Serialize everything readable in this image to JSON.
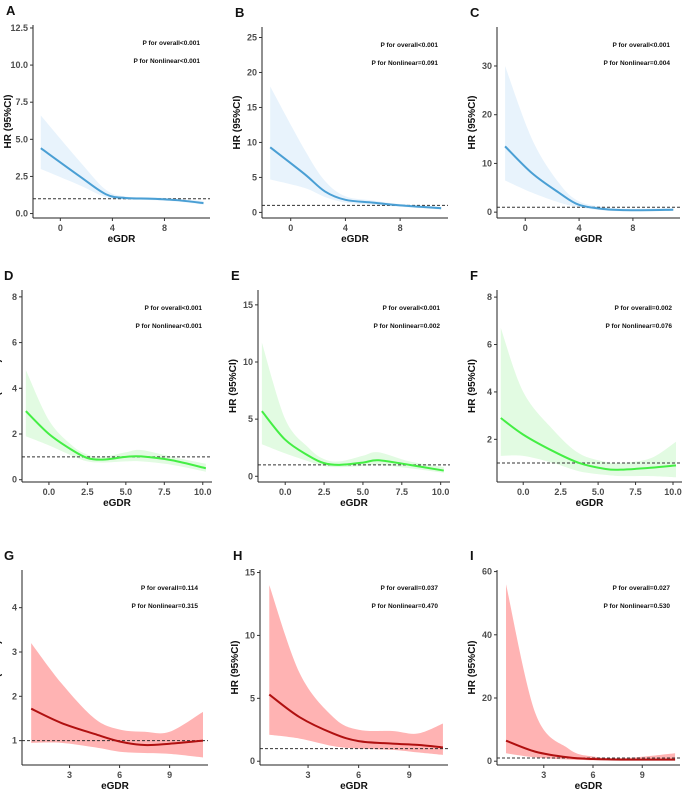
{
  "chart_data": [
    {
      "type": "line",
      "panel": "A",
      "xlabel": "eGDR",
      "ylabel": "HR (95%CI)",
      "p_overall": "P for overall<0.001",
      "p_nonlinear": "P for Nonlinear<0.001",
      "xlim": [
        -2.1,
        11.5
      ],
      "ylim": [
        -0.3,
        12.7
      ],
      "xticks": [
        "0",
        "4",
        "8"
      ],
      "xtick_values": [
        0,
        4,
        8
      ],
      "yticks": [
        "0.0",
        "2.5",
        "5.0",
        "7.5",
        "10.0",
        "12.5"
      ],
      "ytick_values": [
        0,
        2.5,
        5,
        7.5,
        10,
        12.5
      ],
      "line_color": "#4a9fd4",
      "band_color": "#e8f3fc",
      "reference": 1,
      "x": [
        -1.5,
        1.5,
        3.5,
        5,
        7,
        9,
        11
      ],
      "y": [
        4.4,
        2.5,
        1.3,
        1.05,
        1.0,
        0.9,
        0.7
      ],
      "upper": [
        6.6,
        3.5,
        1.6,
        1.15,
        1.1,
        1.0,
        0.85
      ],
      "lower": [
        3.0,
        1.9,
        1.1,
        0.95,
        0.9,
        0.8,
        0.6
      ]
    },
    {
      "type": "line",
      "panel": "B",
      "xlabel": "eGDR",
      "ylabel": "HR (95%CI)",
      "p_overall": "P for overall<0.001",
      "p_nonlinear": "P for Nonlinear=0.091",
      "xlim": [
        -2.1,
        11.5
      ],
      "ylim": [
        -0.8,
        26.5
      ],
      "xticks": [
        "0",
        "4",
        "8"
      ],
      "xtick_values": [
        0,
        4,
        8
      ],
      "yticks": [
        "0",
        "5",
        "10",
        "15",
        "20",
        "25"
      ],
      "ytick_values": [
        0,
        5,
        10,
        15,
        20,
        25
      ],
      "line_color": "#4a9fd4",
      "band_color": "#e8f3fc",
      "reference": 1,
      "x": [
        -1.5,
        1,
        2.5,
        4,
        6,
        8,
        11
      ],
      "y": [
        9.3,
        5.5,
        3.0,
        1.8,
        1.4,
        1.0,
        0.6
      ],
      "upper": [
        18,
        9,
        4.5,
        2.3,
        1.7,
        1.2,
        0.8
      ],
      "lower": [
        4.7,
        3.5,
        2.2,
        1.4,
        1.1,
        0.8,
        0.4
      ]
    },
    {
      "type": "line",
      "panel": "C",
      "xlabel": "eGDR",
      "ylabel": "HR (95%CI)",
      "p_overall": "P for overall<0.001",
      "p_nonlinear": "P for Nonlinear=0.004",
      "xlim": [
        -2.1,
        11.5
      ],
      "ylim": [
        -1.2,
        38
      ],
      "xticks": [
        "0",
        "4",
        "8"
      ],
      "xtick_values": [
        0,
        4,
        8
      ],
      "yticks": [
        "0",
        "10",
        "20",
        "30"
      ],
      "ytick_values": [
        0,
        10,
        20,
        30
      ],
      "line_color": "#4a9fd4",
      "band_color": "#e8f3fc",
      "reference": 1,
      "x": [
        -1.5,
        0.5,
        2.5,
        4,
        6,
        8,
        11
      ],
      "y": [
        13.5,
        8,
        4,
        1.5,
        0.6,
        0.4,
        0.5
      ],
      "upper": [
        30,
        15,
        6,
        2.2,
        1,
        0.7,
        0.9
      ],
      "lower": [
        6.5,
        4,
        2,
        1,
        0.3,
        0.2,
        0.3
      ]
    },
    {
      "type": "line",
      "panel": "D",
      "xlabel": "eGDR",
      "ylabel": "HR (95%CI)",
      "p_overall": "P for overall<0.001",
      "p_nonlinear": "P for Nonlinear<0.001",
      "xlim": [
        -1.75,
        10.6
      ],
      "ylim": [
        -0.1,
        8.3
      ],
      "xticks": [
        "0.0",
        "2.5",
        "5.0",
        "7.5",
        "10.0"
      ],
      "xtick_values": [
        0,
        2.5,
        5,
        7.5,
        10
      ],
      "yticks": [
        "0",
        "2",
        "4",
        "6",
        "8"
      ],
      "ytick_values": [
        0,
        2,
        4,
        6,
        8
      ],
      "line_color": "#44ee44",
      "band_color": "#e2fbe2",
      "reference": 1,
      "x": [
        -1.5,
        0,
        1.5,
        2.5,
        3.5,
        5,
        6,
        8,
        10.2
      ],
      "y": [
        3.0,
        2.0,
        1.3,
        0.95,
        0.88,
        1.0,
        1.02,
        0.85,
        0.5
      ],
      "upper": [
        4.8,
        2.6,
        1.5,
        1.1,
        1.0,
        1.2,
        1.3,
        1.0,
        0.7
      ],
      "lower": [
        1.9,
        1.5,
        1.05,
        0.8,
        0.75,
        0.8,
        0.8,
        0.65,
        0.35
      ]
    },
    {
      "type": "line",
      "panel": "E",
      "xlabel": "eGDR",
      "ylabel": "HR (95%CI)",
      "p_overall": "P for overall<0.001",
      "p_nonlinear": "P for Nonlinear=0.002",
      "xlim": [
        -1.75,
        10.6
      ],
      "ylim": [
        -0.5,
        16.3
      ],
      "xticks": [
        "0.0",
        "2.5",
        "5.0",
        "7.5",
        "10.0"
      ],
      "xtick_values": [
        0,
        2.5,
        5,
        7.5,
        10
      ],
      "yticks": [
        "0",
        "5",
        "10",
        "15"
      ],
      "ytick_values": [
        0,
        5,
        10,
        15
      ],
      "line_color": "#44ee44",
      "band_color": "#e2fbe2",
      "reference": 1,
      "x": [
        -1.5,
        0,
        1.5,
        2.5,
        3.5,
        5,
        6,
        8,
        10.2
      ],
      "y": [
        5.7,
        3.2,
        1.8,
        1.15,
        1.0,
        1.2,
        1.4,
        1.0,
        0.5
      ],
      "upper": [
        11.7,
        5,
        2.5,
        1.5,
        1.3,
        1.8,
        2.1,
        1.3,
        0.8
      ],
      "lower": [
        2.8,
        2,
        1.3,
        0.9,
        0.8,
        0.9,
        1.0,
        0.7,
        0.3
      ]
    },
    {
      "type": "line",
      "panel": "F",
      "xlabel": "eGDR",
      "ylabel": "HR (95%CI)",
      "p_overall": "P for overall=0.002",
      "p_nonlinear": "P for Nonlinear=0.076",
      "xlim": [
        -1.75,
        10.6
      ],
      "ylim": [
        0.2,
        8.3
      ],
      "xticks": [
        "0.0",
        "2.5",
        "5.0",
        "7.5",
        "10.0"
      ],
      "xtick_values": [
        0,
        2.5,
        5,
        7.5,
        10
      ],
      "yticks": [
        "2",
        "4",
        "6",
        "8"
      ],
      "ytick_values": [
        2,
        4,
        6,
        8
      ],
      "line_color": "#44ee44",
      "band_color": "#e2fbe2",
      "reference": 1,
      "x": [
        -1.5,
        0,
        2,
        3.75,
        5.5,
        6.5,
        8.5,
        10.2
      ],
      "y": [
        2.9,
        2.2,
        1.5,
        1.0,
        0.75,
        0.72,
        0.8,
        0.9
      ],
      "upper": [
        6.7,
        4.0,
        2.4,
        1.4,
        1.05,
        1.0,
        1.2,
        1.9
      ],
      "lower": [
        1.3,
        1.3,
        1.0,
        0.65,
        0.5,
        0.45,
        0.45,
        0.4
      ]
    },
    {
      "type": "line",
      "panel": "G",
      "xlabel": "eGDR",
      "ylabel": "HR (95%CI)",
      "p_overall": "P for overall=0.114",
      "p_nonlinear": "P for Nonlinear=0.315",
      "xlim": [
        0.15,
        11.3
      ],
      "ylim": [
        0.45,
        4.85
      ],
      "xticks": [
        "3",
        "6",
        "9"
      ],
      "xtick_values": [
        3,
        6,
        9
      ],
      "yticks": [
        "1",
        "2",
        "3",
        "4"
      ],
      "ytick_values": [
        1,
        2,
        3,
        4
      ],
      "line_color": "#b01010",
      "band_color": "#ffb3b3",
      "reference": 1,
      "x": [
        0.7,
        2.5,
        4.5,
        6,
        7.5,
        9,
        11
      ],
      "y": [
        1.72,
        1.4,
        1.15,
        0.98,
        0.9,
        0.93,
        1.0
      ],
      "upper": [
        3.2,
        2.3,
        1.5,
        1.25,
        1.2,
        1.2,
        1.65
      ],
      "lower": [
        0.95,
        0.95,
        0.85,
        0.75,
        0.72,
        0.7,
        0.62
      ]
    },
    {
      "type": "line",
      "panel": "H",
      "xlabel": "eGDR",
      "ylabel": "HR (95%CI)",
      "p_overall": "P for overall=0.037",
      "p_nonlinear": "P for Nonlinear=0.470",
      "xlim": [
        0.15,
        11.3
      ],
      "ylim": [
        -0.3,
        15.2
      ],
      "xticks": [
        "3",
        "6",
        "9"
      ],
      "xtick_values": [
        3,
        6,
        9
      ],
      "yticks": [
        "0",
        "5",
        "10",
        "15"
      ],
      "ytick_values": [
        0,
        5,
        10,
        15
      ],
      "line_color": "#b01010",
      "band_color": "#ffb3b3",
      "reference": 1,
      "x": [
        0.7,
        2.5,
        4.5,
        6,
        8,
        9.5,
        11
      ],
      "y": [
        5.3,
        3.5,
        2.2,
        1.6,
        1.4,
        1.3,
        1.1
      ],
      "upper": [
        14,
        7,
        3.5,
        2.5,
        2.4,
        2.2,
        3.0
      ],
      "lower": [
        2.1,
        1.8,
        1.2,
        1.0,
        0.9,
        0.7,
        0.5
      ]
    },
    {
      "type": "line",
      "panel": "I",
      "xlabel": "eGDR",
      "ylabel": "HR (95%CI)",
      "p_overall": "P for overall=0.027",
      "p_nonlinear": "P for Nonlinear=0.530",
      "xlim": [
        0.15,
        11.3
      ],
      "ylim": [
        -1.2,
        60.5
      ],
      "xticks": [
        "3",
        "6",
        "9"
      ],
      "xtick_values": [
        3,
        6,
        9
      ],
      "yticks": [
        "0",
        "20",
        "40",
        "60"
      ],
      "ytick_values": [
        0,
        20,
        40,
        60
      ],
      "line_color": "#b01010",
      "band_color": "#ffb3b3",
      "reference": 1,
      "x": [
        0.7,
        2.5,
        4.5,
        6,
        8,
        11
      ],
      "y": [
        6.5,
        3,
        1.2,
        0.7,
        0.5,
        0.5
      ],
      "upper": [
        56,
        15,
        4,
        1.5,
        1.0,
        2.5
      ],
      "lower": [
        2.5,
        1.2,
        0.5,
        0.3,
        0.3,
        0.2
      ]
    }
  ]
}
